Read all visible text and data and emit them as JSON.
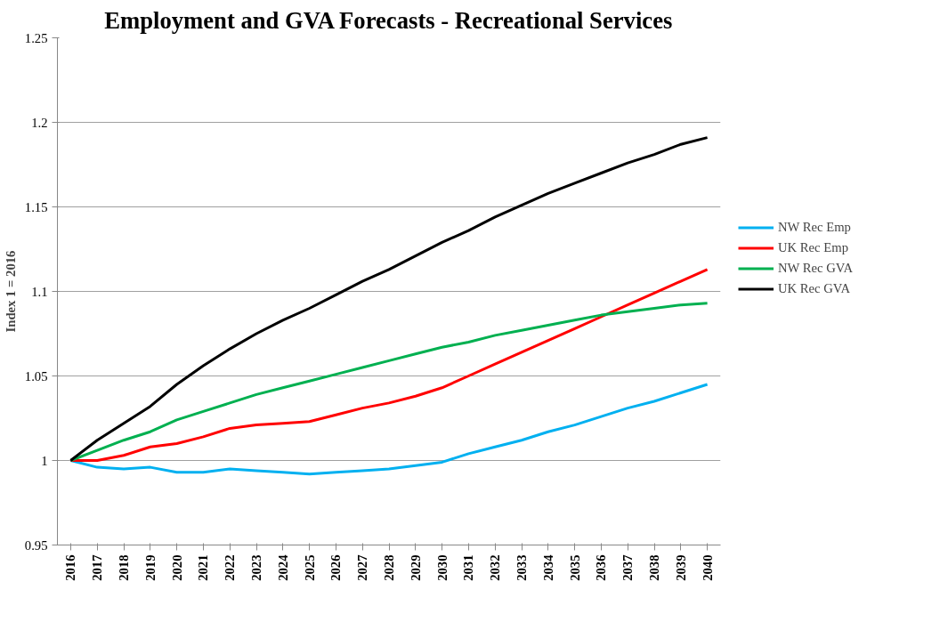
{
  "chart_data": {
    "type": "line",
    "title": "Employment and GVA Forecasts - Recreational Services",
    "ylabel": "Index 1 = 2016",
    "categories": [
      "2016",
      "2017",
      "2018",
      "2019",
      "2020",
      "2021",
      "2022",
      "2023",
      "2024",
      "2025",
      "2026",
      "2027",
      "2028",
      "2029",
      "2030",
      "2031",
      "2032",
      "2033",
      "2034",
      "2035",
      "2036",
      "2037",
      "2038",
      "2039",
      "2040"
    ],
    "series": [
      {
        "name": "NW Rec Emp",
        "color": "#00b0f0",
        "values": [
          1.0,
          0.996,
          0.995,
          0.996,
          0.993,
          0.993,
          0.995,
          0.994,
          0.993,
          0.992,
          0.993,
          0.994,
          0.995,
          0.997,
          0.999,
          1.004,
          1.008,
          1.012,
          1.017,
          1.021,
          1.026,
          1.031,
          1.035,
          1.04,
          1.045
        ]
      },
      {
        "name": "UK Rec Emp",
        "color": "#ff0000",
        "values": [
          1.0,
          1.0,
          1.003,
          1.008,
          1.01,
          1.014,
          1.019,
          1.021,
          1.022,
          1.023,
          1.027,
          1.031,
          1.034,
          1.038,
          1.043,
          1.05,
          1.057,
          1.064,
          1.071,
          1.078,
          1.085,
          1.092,
          1.099,
          1.106,
          1.113
        ]
      },
      {
        "name": "NW Rec GVA",
        "color": "#00b050",
        "values": [
          1.0,
          1.006,
          1.012,
          1.017,
          1.024,
          1.029,
          1.034,
          1.039,
          1.043,
          1.047,
          1.051,
          1.055,
          1.059,
          1.063,
          1.067,
          1.07,
          1.074,
          1.077,
          1.08,
          1.083,
          1.086,
          1.088,
          1.09,
          1.092,
          1.093
        ]
      },
      {
        "name": "UK Rec GVA",
        "color": "#000000",
        "values": [
          1.0,
          1.012,
          1.022,
          1.032,
          1.045,
          1.056,
          1.066,
          1.075,
          1.083,
          1.09,
          1.098,
          1.106,
          1.113,
          1.121,
          1.129,
          1.136,
          1.144,
          1.151,
          1.158,
          1.164,
          1.17,
          1.176,
          1.181,
          1.187,
          1.191
        ]
      }
    ],
    "ylim": [
      0.95,
      1.25
    ],
    "yticks": [
      0.95,
      1,
      1.05,
      1.1,
      1.15,
      1.2,
      1.25
    ],
    "grid": "y",
    "legend": "right",
    "marker": "none",
    "line_style": "solid"
  }
}
